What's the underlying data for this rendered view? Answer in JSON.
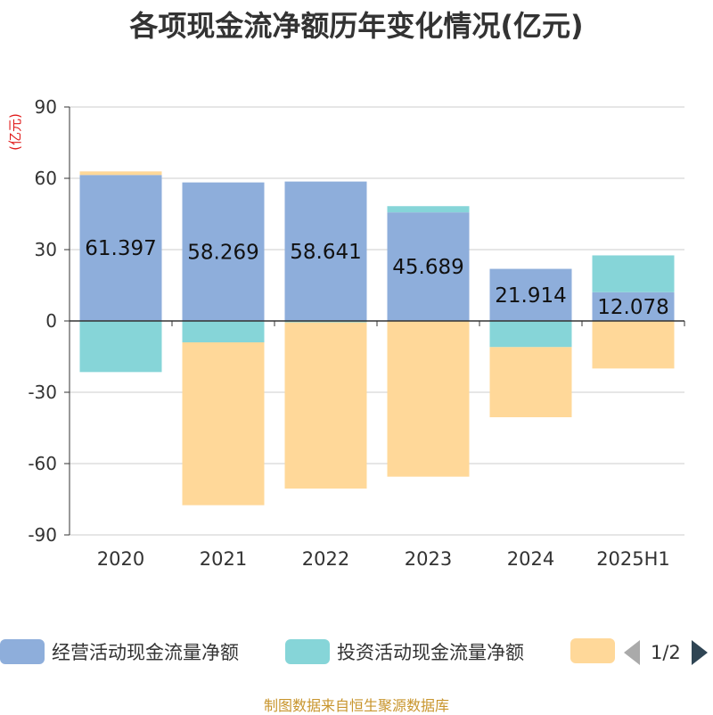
{
  "title": "各项现金流净额历年变化情况(亿元)",
  "footer": "制图数据来自恒生聚源数据库",
  "pager": {
    "text": "1/2"
  },
  "chart_data": {
    "type": "bar",
    "stacked": true,
    "categories": [
      "2020",
      "2021",
      "2022",
      "2023",
      "2024",
      "2025H1"
    ],
    "ylabel": "(亿元)",
    "ylim": [
      -90,
      90
    ],
    "yticks": [
      90,
      60,
      30,
      0,
      -30,
      -60,
      -90
    ],
    "grid": true,
    "legend_position": "bottom",
    "series": [
      {
        "name": "经营活动现金流量净额",
        "color": "#8eaedb",
        "values": [
          61.397,
          58.269,
          58.641,
          45.689,
          21.914,
          12.078
        ],
        "labels": [
          "61.397",
          "58.269",
          "58.641",
          "45.689",
          "21.914",
          "12.078"
        ]
      },
      {
        "name": "投资活动现金流量净额",
        "color": "#86d5d8",
        "values": [
          -21.5,
          -9.0,
          -0.6,
          2.6,
          -11.0,
          15.5
        ]
      },
      {
        "name": "",
        "color": "#ffd899",
        "values": [
          1.5,
          -68.5,
          -69.9,
          -65.5,
          -29.5,
          -20.0
        ]
      }
    ]
  }
}
